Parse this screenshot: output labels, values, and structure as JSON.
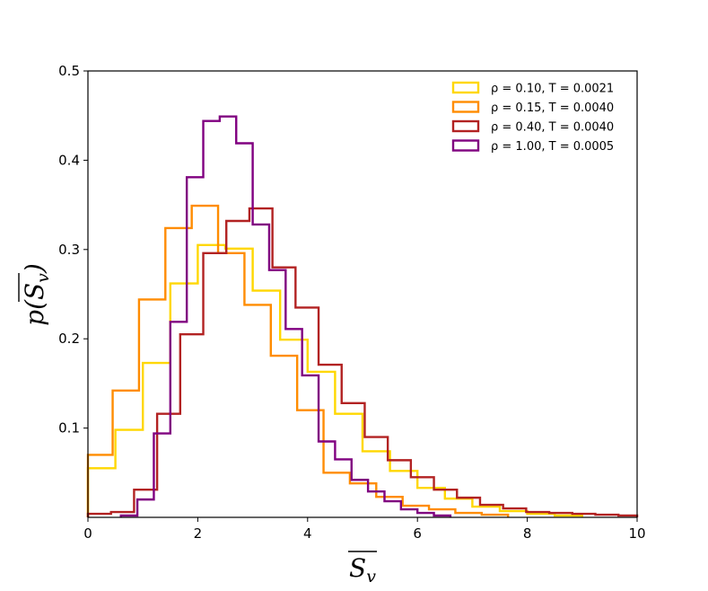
{
  "chart_data": {
    "type": "histogram",
    "xlabel": "S_v",
    "ylabel": "p(S_v)",
    "xlim": [
      0,
      10
    ],
    "ylim": [
      0,
      0.5
    ],
    "xticks": [
      "0",
      "2",
      "4",
      "6",
      "8",
      "10"
    ],
    "yticks": [
      "0.1",
      "0.2",
      "0.3",
      "0.4",
      "0.5"
    ],
    "legend_position": "top-right",
    "series": [
      {
        "name": "ρ = 0.10, T = 0.0021",
        "color": "#ffd700",
        "edges": [
          0,
          0.5,
          1,
          1.5,
          2,
          2.5,
          3,
          3.5,
          4,
          4.5,
          5,
          5.5,
          6,
          6.5,
          7,
          7.5,
          8,
          8.5,
          9
        ],
        "values": [
          0.055,
          0.098,
          0.173,
          0.262,
          0.305,
          0.301,
          0.254,
          0.199,
          0.163,
          0.116,
          0.074,
          0.052,
          0.033,
          0.021,
          0.012,
          0.007,
          0.004,
          0.002
        ]
      },
      {
        "name": "ρ = 0.15, T = 0.0040",
        "color": "#ff8c00",
        "edges": [
          0,
          0.45,
          0.93,
          1.41,
          1.89,
          2.37,
          2.85,
          3.33,
          3.81,
          4.29,
          4.77,
          5.25,
          5.73,
          6.21,
          6.69,
          7.17,
          7.65
        ],
        "values": [
          0.07,
          0.142,
          0.244,
          0.324,
          0.349,
          0.296,
          0.238,
          0.181,
          0.12,
          0.05,
          0.038,
          0.023,
          0.013,
          0.009,
          0.005,
          0.003
        ]
      },
      {
        "name": "ρ = 0.40, T = 0.0040",
        "color": "#b22222",
        "edges": [
          0,
          0.42,
          0.84,
          1.26,
          1.68,
          2.1,
          2.52,
          2.94,
          3.36,
          3.78,
          4.2,
          4.62,
          5.04,
          5.46,
          5.88,
          6.3,
          6.72,
          7.14,
          7.56,
          7.98,
          8.4,
          8.82,
          9.24,
          9.66,
          10
        ],
        "values": [
          0.004,
          0.006,
          0.031,
          0.116,
          0.205,
          0.296,
          0.332,
          0.346,
          0.28,
          0.235,
          0.171,
          0.128,
          0.09,
          0.064,
          0.045,
          0.031,
          0.022,
          0.014,
          0.01,
          0.006,
          0.005,
          0.004,
          0.003,
          0.002
        ]
      },
      {
        "name": "ρ = 1.00, T = 0.0005",
        "color": "#800080",
        "edges": [
          0.6,
          0.9,
          1.2,
          1.5,
          1.8,
          2.1,
          2.4,
          2.7,
          3.0,
          3.3,
          3.6,
          3.9,
          4.2,
          4.5,
          4.8,
          5.1,
          5.4,
          5.7,
          6.0,
          6.3,
          6.6
        ],
        "values": [
          0.002,
          0.02,
          0.094,
          0.219,
          0.381,
          0.444,
          0.449,
          0.419,
          0.328,
          0.277,
          0.211,
          0.159,
          0.085,
          0.065,
          0.042,
          0.029,
          0.018,
          0.009,
          0.005,
          0.002
        ]
      }
    ]
  }
}
